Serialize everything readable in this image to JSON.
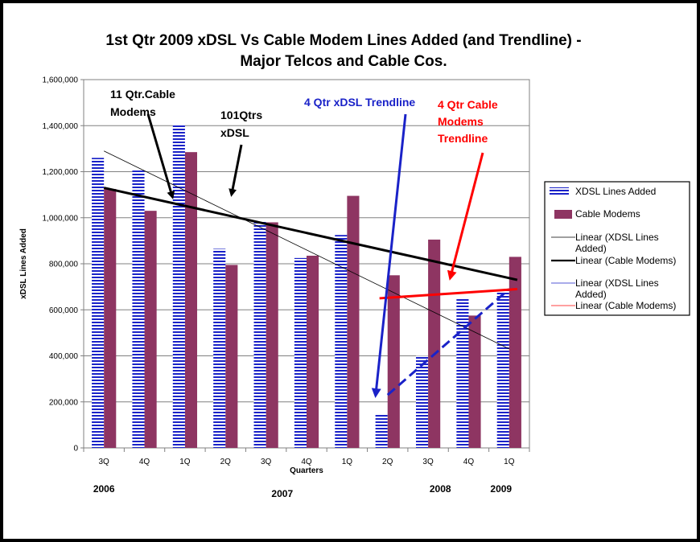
{
  "chart_data": {
    "type": "bar",
    "title_line1": "1st Qtr  2009 xDSL Vs Cable Modem Lines Added (and Trendline) -",
    "title_line2": "Major Telcos and Cable Cos.",
    "ylabel": "xDSL Lines Added",
    "xlabel": "Quarters",
    "ylim": [
      0,
      1600000
    ],
    "yticks": [
      {
        "value": 0,
        "label": "0"
      },
      {
        "value": 200000,
        "label": "200,000"
      },
      {
        "value": 400000,
        "label": "400,000"
      },
      {
        "value": 600000,
        "label": "600,000"
      },
      {
        "value": 800000,
        "label": "800,000"
      },
      {
        "value": 1000000,
        "label": "1,000,000"
      },
      {
        "value": 1200000,
        "label": "1,200,000"
      },
      {
        "value": 1400000,
        "label": "1,400,000"
      },
      {
        "value": 1600000,
        "label": "1,600,000"
      }
    ],
    "categories": [
      "3Q",
      "4Q",
      "1Q",
      "2Q",
      "3Q",
      "4Q",
      "1Q",
      "2Q",
      "3Q",
      "4Q",
      "1Q"
    ],
    "years": [
      {
        "label": "2006",
        "index": 0
      },
      {
        "label": "2007",
        "index": 4.4
      },
      {
        "label": "2008",
        "index": 8.3
      },
      {
        "label": "2009",
        "index": 9.8
      }
    ],
    "series": [
      {
        "name": "XDSL Lines Added",
        "color": "#1a22c8",
        "pattern": "horizontal-stripes",
        "values": [
          1260000,
          1205000,
          1405000,
          865000,
          985000,
          825000,
          925000,
          145000,
          400000,
          650000,
          695000
        ]
      },
      {
        "name": "Cable Modems",
        "color": "#8e3562",
        "values": [
          1125000,
          1030000,
          1285000,
          795000,
          980000,
          835000,
          1095000,
          750000,
          905000,
          575000,
          830000
        ]
      }
    ],
    "trendlines": [
      {
        "name": "Linear (XDSL Lines Added)",
        "color": "#000000",
        "style": "thin",
        "from": [
          0,
          1290000
        ],
        "to": [
          10,
          430000
        ]
      },
      {
        "name": "Linear (Cable Modems)",
        "color": "#000000",
        "style": "thick",
        "from": [
          0,
          1130000
        ],
        "to": [
          10.2,
          730000
        ]
      },
      {
        "name": "Linear (XDSL Lines Added)",
        "color": "#1a22c8",
        "style": "dashed",
        "from": [
          7,
          230000
        ],
        "to": [
          10,
          690000
        ]
      },
      {
        "name": "Linear (Cable Modems)",
        "color": "#ff0000",
        "style": "thick",
        "from": [
          6.8,
          650000
        ],
        "to": [
          10.2,
          690000
        ]
      }
    ],
    "legend": {
      "placement": "right",
      "items": [
        {
          "label_lines": [
            "XDSL Lines Added"
          ],
          "kind": "striped-box",
          "color": "#1a22c8"
        },
        {
          "label_lines": [
            "Cable Modems"
          ],
          "kind": "box",
          "color": "#8e3562"
        },
        {
          "label_lines": [
            "Linear (XDSL Lines",
            "Added)"
          ],
          "kind": "thin-line",
          "color": "#000000"
        },
        {
          "label_lines": [
            "Linear (Cable Modems)"
          ],
          "kind": "thick-line",
          "color": "#000000"
        },
        {
          "label_lines": [
            "Linear (XDSL Lines",
            "Added)"
          ],
          "kind": "thin-line",
          "color": "#1a22c8"
        },
        {
          "label_lines": [
            "Linear (Cable Modems)"
          ],
          "kind": "thin-line",
          "color": "#ff0000"
        }
      ]
    },
    "annotations": [
      {
        "lines": [
          "11 Qtr.Cable",
          "Modems"
        ],
        "color": "#000000"
      },
      {
        "lines": [
          "101Qtrs",
          "xDSL"
        ],
        "color": "#000000"
      },
      {
        "lines": [
          "4 Qtr xDSL Trendline"
        ],
        "color": "#1a22c8"
      },
      {
        "lines": [
          "4 Qtr Cable",
          "Modems",
          "Trendline"
        ],
        "color": "#ff0000"
      }
    ]
  }
}
